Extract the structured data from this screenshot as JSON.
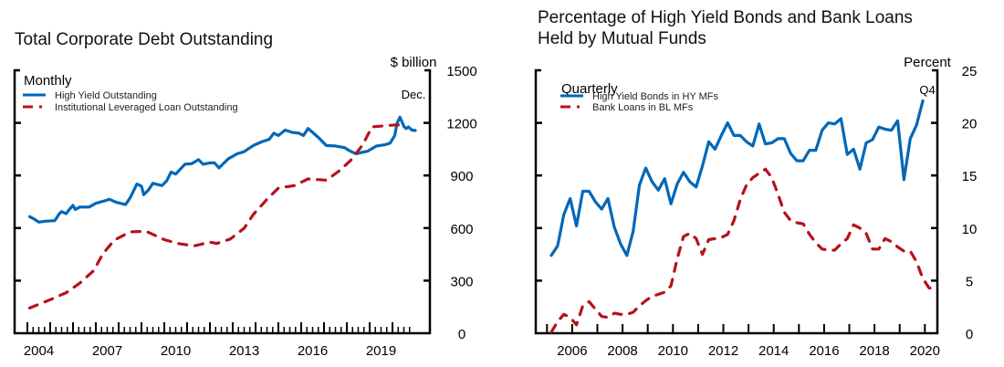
{
  "colors": {
    "blue": "#0067B8",
    "red": "#B5121B",
    "axis": "#000000"
  },
  "chart_data": [
    {
      "type": "line",
      "title": "Total Corporate Debt Outstanding",
      "frequency_label": "Monthly",
      "ylabel": "$ billion",
      "annotation": "Dec.",
      "xlim": [
        2003.45,
        2021.75
      ],
      "ylim": [
        0,
        1500
      ],
      "yticks": [
        0,
        300,
        600,
        900,
        1200,
        1500
      ],
      "xtick_labels": [
        "2004",
        "2007",
        "2010",
        "2013",
        "2016",
        "2019"
      ],
      "xtick_label_years": [
        2004,
        2007,
        2010,
        2013,
        2016,
        2019
      ],
      "major_tick_years": [
        2004,
        2005,
        2006,
        2007,
        2008,
        2009,
        2010,
        2011,
        2012,
        2013,
        2014,
        2015,
        2016,
        2017,
        2018,
        2019,
        2020
      ],
      "minor_ticks": "quarterly",
      "grid": false,
      "legend_position": "top-left",
      "series": [
        {
          "name": "High Yield Outstanding",
          "style": "solid",
          "color": "blue",
          "points": [
            [
              2004.1,
              665
            ],
            [
              2004.3,
              651
            ],
            [
              2004.5,
              634
            ],
            [
              2004.8,
              639
            ],
            [
              2005.2,
              642
            ],
            [
              2005.4,
              682
            ],
            [
              2005.5,
              694
            ],
            [
              2005.7,
              682
            ],
            [
              2005.8,
              700
            ],
            [
              2006.0,
              729
            ],
            [
              2006.1,
              706
            ],
            [
              2006.3,
              720
            ],
            [
              2006.7,
              720
            ],
            [
              2007.0,
              741
            ],
            [
              2007.3,
              752
            ],
            [
              2007.6,
              764
            ],
            [
              2007.9,
              747
            ],
            [
              2008.3,
              734
            ],
            [
              2008.5,
              772
            ],
            [
              2008.8,
              851
            ],
            [
              2009.0,
              839
            ],
            [
              2009.1,
              790
            ],
            [
              2009.3,
              816
            ],
            [
              2009.5,
              855
            ],
            [
              2009.9,
              842
            ],
            [
              2010.1,
              868
            ],
            [
              2010.3,
              920
            ],
            [
              2010.5,
              908
            ],
            [
              2010.9,
              964
            ],
            [
              2011.2,
              967
            ],
            [
              2011.5,
              990
            ],
            [
              2011.7,
              964
            ],
            [
              2012.0,
              972
            ],
            [
              2012.2,
              972
            ],
            [
              2012.4,
              943
            ],
            [
              2012.8,
              995
            ],
            [
              2013.2,
              1024
            ],
            [
              2013.5,
              1036
            ],
            [
              2013.9,
              1071
            ],
            [
              2014.3,
              1094
            ],
            [
              2014.6,
              1106
            ],
            [
              2014.8,
              1141
            ],
            [
              2015.0,
              1128
            ],
            [
              2015.3,
              1159
            ],
            [
              2015.6,
              1146
            ],
            [
              2015.9,
              1141
            ],
            [
              2016.1,
              1128
            ],
            [
              2016.3,
              1168
            ],
            [
              2016.5,
              1146
            ],
            [
              2016.8,
              1111
            ],
            [
              2017.1,
              1071
            ],
            [
              2017.5,
              1068
            ],
            [
              2017.9,
              1059
            ],
            [
              2018.1,
              1042
            ],
            [
              2018.4,
              1024
            ],
            [
              2018.7,
              1033
            ],
            [
              2018.9,
              1038
            ],
            [
              2019.3,
              1068
            ],
            [
              2019.7,
              1076
            ],
            [
              2019.9,
              1085
            ],
            [
              2020.1,
              1128
            ],
            [
              2020.2,
              1198
            ],
            [
              2020.33,
              1233
            ],
            [
              2020.5,
              1180
            ],
            [
              2020.6,
              1167
            ],
            [
              2020.7,
              1177
            ],
            [
              2020.85,
              1159
            ],
            [
              2021.0,
              1157
            ]
          ]
        },
        {
          "name": "Institutional Leveraged Loan Outstanding",
          "style": "dashed",
          "color": "red",
          "points": [
            [
              2004.1,
              144
            ],
            [
              2005.0,
              191
            ],
            [
              2005.7,
              231
            ],
            [
              2006.3,
              286
            ],
            [
              2006.9,
              356
            ],
            [
              2007.3,
              451
            ],
            [
              2007.8,
              530
            ],
            [
              2008.5,
              578
            ],
            [
              2009.2,
              582
            ],
            [
              2010.0,
              534
            ],
            [
              2010.6,
              512
            ],
            [
              2011.3,
              498
            ],
            [
              2012.0,
              520
            ],
            [
              2012.3,
              512
            ],
            [
              2012.9,
              538
            ],
            [
              2013.5,
              599
            ],
            [
              2013.9,
              677
            ],
            [
              2014.5,
              764
            ],
            [
              2015.0,
              828
            ],
            [
              2015.7,
              842
            ],
            [
              2016.3,
              880
            ],
            [
              2017.1,
              873
            ],
            [
              2017.7,
              929
            ],
            [
              2018.2,
              990
            ],
            [
              2018.7,
              1076
            ],
            [
              2019.1,
              1177
            ],
            [
              2019.7,
              1184
            ],
            [
              2020.2,
              1189
            ],
            [
              2020.6,
              1184
            ]
          ]
        }
      ]
    },
    {
      "type": "line",
      "title": "Percentage of High Yield Bonds and Bank Loans\nHeld by Mutual Funds",
      "frequency_label": "Quarterly",
      "ylabel": "Percent",
      "annotation": "Q4",
      "xlim": [
        2004.6,
        2021.3
      ],
      "ylim": [
        0,
        25
      ],
      "yticks": [
        0,
        5,
        10,
        15,
        20,
        25
      ],
      "xtick_labels": [
        "2006",
        "2008",
        "2010",
        "2012",
        "2014",
        "2016",
        "2018",
        "2020"
      ],
      "xtick_label_years": [
        2006,
        2008,
        2010,
        2012,
        2014,
        2016,
        2018,
        2020
      ],
      "major_tick_years": [
        2005,
        2006,
        2007,
        2008,
        2009,
        2010,
        2011,
        2012,
        2013,
        2014,
        2015,
        2016,
        2017,
        2018,
        2019,
        2020
      ],
      "grid": false,
      "legend_position": "top-left",
      "series": [
        {
          "name": "High Yield Bonds in HY MFs",
          "style": "solid",
          "color": "blue",
          "start": 2005.17,
          "step": 0.25,
          "values": [
            7.4,
            8.3,
            11.3,
            12.8,
            10.2,
            13.5,
            13.5,
            12.5,
            11.8,
            12.8,
            10.1,
            8.5,
            7.4,
            9.7,
            14.1,
            15.7,
            14.4,
            13.6,
            14.7,
            12.3,
            14.2,
            15.3,
            14.4,
            13.9,
            15.9,
            18.2,
            17.5,
            18.8,
            20.0,
            18.8,
            18.8,
            18.2,
            17.8,
            19.9,
            18.0,
            18.1,
            18.5,
            18.5,
            17.1,
            16.4,
            16.4,
            17.4,
            17.4,
            19.3,
            20.0,
            19.9,
            20.4,
            17.0,
            17.5,
            15.6,
            18.1,
            18.4,
            19.6,
            19.4,
            19.3,
            20.2,
            14.6,
            18.5,
            19.8,
            22.1
          ]
        },
        {
          "name": "Bank Loans in BL MFs",
          "style": "dashed",
          "color": "red",
          "start": 2005.17,
          "step": 0.25,
          "values": [
            0.1,
            1.1,
            1.8,
            1.5,
            0.8,
            2.6,
            3.0,
            2.3,
            1.6,
            1.5,
            1.9,
            1.8,
            1.8,
            2.0,
            2.6,
            3.1,
            3.5,
            3.7,
            3.9,
            4.5,
            7.1,
            9.2,
            9.5,
            9.0,
            7.5,
            8.9,
            9.0,
            9.1,
            9.4,
            10.7,
            12.7,
            14.1,
            14.8,
            15.2,
            15.6,
            14.8,
            13.2,
            11.5,
            10.7,
            10.5,
            10.4,
            9.4,
            8.6,
            8.0,
            7.9,
            7.9,
            8.5,
            9.0,
            10.3,
            10.0,
            9.5,
            8.0,
            8.0,
            9.0,
            8.7,
            8.2,
            7.8,
            7.8,
            6.8,
            5.2,
            4.3,
            4.3
          ]
        }
      ]
    }
  ]
}
